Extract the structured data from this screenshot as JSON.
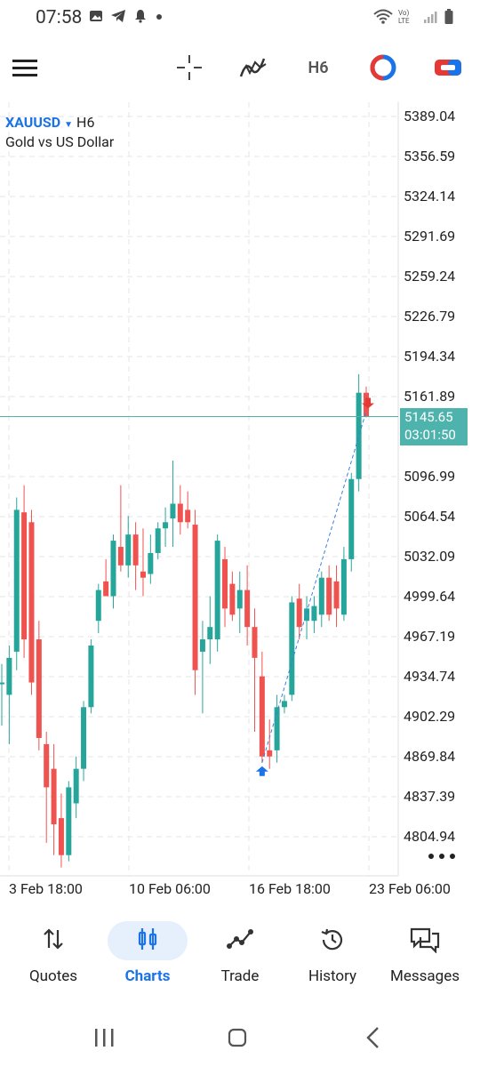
{
  "status": {
    "time": "07:58",
    "network": "Vo) LTE"
  },
  "toolbar": {
    "timeframe": "H6"
  },
  "chart": {
    "symbol": "XAUUSD",
    "timeframe": "H6",
    "description": "Gold vs US Dollar",
    "current_price": "5145.65",
    "countdown": "03:01:50",
    "price_labels": [
      "5389.04",
      "5356.59",
      "5324.14",
      "5291.69",
      "5259.24",
      "5226.79",
      "5194.34",
      "5161.89",
      "5096.99",
      "5064.54",
      "5032.09",
      "4999.64",
      "4967.19",
      "4934.74",
      "4902.29",
      "4869.84",
      "4837.39",
      "4804.94"
    ],
    "date_labels": [
      "3 Feb 18:00",
      "10 Feb 06:00",
      "16 Feb 18:00",
      "23 Feb 06:00"
    ]
  },
  "chart_data": {
    "type": "candlestick",
    "ylim": [
      4785,
      5400
    ],
    "candles": [
      {
        "o": 4930,
        "h": 4945,
        "l": 4895,
        "c": 4930,
        "up": true
      },
      {
        "o": 4920,
        "h": 4960,
        "l": 4880,
        "c": 4950,
        "up": true
      },
      {
        "o": 4955,
        "h": 5080,
        "l": 4940,
        "c": 5070,
        "up": true
      },
      {
        "o": 5068,
        "h": 5090,
        "l": 4950,
        "c": 4965,
        "up": false
      },
      {
        "o": 5060,
        "h": 5070,
        "l": 4920,
        "c": 4930,
        "up": false
      },
      {
        "o": 4965,
        "h": 4980,
        "l": 4875,
        "c": 4885,
        "up": false
      },
      {
        "o": 4880,
        "h": 4890,
        "l": 4800,
        "c": 4845,
        "up": false
      },
      {
        "o": 4860,
        "h": 4880,
        "l": 4790,
        "c": 4815,
        "up": false
      },
      {
        "o": 4820,
        "h": 4840,
        "l": 4780,
        "c": 4790,
        "up": false
      },
      {
        "o": 4790,
        "h": 4850,
        "l": 4785,
        "c": 4845,
        "up": true
      },
      {
        "o": 4832,
        "h": 4870,
        "l": 4820,
        "c": 4860,
        "up": true
      },
      {
        "o": 4860,
        "h": 4915,
        "l": 4850,
        "c": 4910,
        "up": true
      },
      {
        "o": 4910,
        "h": 4965,
        "l": 4905,
        "c": 4960,
        "up": true
      },
      {
        "o": 4980,
        "h": 5010,
        "l": 4970,
        "c": 5005,
        "up": true
      },
      {
        "o": 5012,
        "h": 5030,
        "l": 5000,
        "c": 5000,
        "up": false
      },
      {
        "o": 5000,
        "h": 5050,
        "l": 4990,
        "c": 5045,
        "up": true
      },
      {
        "o": 5040,
        "h": 5090,
        "l": 5020,
        "c": 5025,
        "up": false
      },
      {
        "o": 5025,
        "h": 5065,
        "l": 5015,
        "c": 5050,
        "up": true
      },
      {
        "o": 5050,
        "h": 5060,
        "l": 5005,
        "c": 5025,
        "up": false
      },
      {
        "o": 5020,
        "h": 5055,
        "l": 5000,
        "c": 5015,
        "up": false
      },
      {
        "o": 5018,
        "h": 5050,
        "l": 5010,
        "c": 5035,
        "up": true
      },
      {
        "o": 5035,
        "h": 5060,
        "l": 5030,
        "c": 5055,
        "up": true
      },
      {
        "o": 5055,
        "h": 5072,
        "l": 5040,
        "c": 5060,
        "up": true
      },
      {
        "o": 5063,
        "h": 5110,
        "l": 5040,
        "c": 5075,
        "up": true
      },
      {
        "o": 5075,
        "h": 5090,
        "l": 5050,
        "c": 5060,
        "up": false
      },
      {
        "o": 5070,
        "h": 5085,
        "l": 5055,
        "c": 5060,
        "up": false
      },
      {
        "o": 5058,
        "h": 5070,
        "l": 4920,
        "c": 4940,
        "up": false
      },
      {
        "o": 4955,
        "h": 4980,
        "l": 4905,
        "c": 4965,
        "up": true
      },
      {
        "o": 4975,
        "h": 5000,
        "l": 4945,
        "c": 4965,
        "up": true
      },
      {
        "o": 4965,
        "h": 5050,
        "l": 4955,
        "c": 5045,
        "up": true
      },
      {
        "o": 5030,
        "h": 5040,
        "l": 4975,
        "c": 4990,
        "up": false
      },
      {
        "o": 5010,
        "h": 5020,
        "l": 4980,
        "c": 4985,
        "up": false
      },
      {
        "o": 4990,
        "h": 5020,
        "l": 4970,
        "c": 5005,
        "up": true
      },
      {
        "o": 5005,
        "h": 5025,
        "l": 4960,
        "c": 4975,
        "up": false
      },
      {
        "o": 4975,
        "h": 4990,
        "l": 4890,
        "c": 4950,
        "up": false
      },
      {
        "o": 4935,
        "h": 4955,
        "l": 4865,
        "c": 4870,
        "up": false
      },
      {
        "o": 4875,
        "h": 4900,
        "l": 4860,
        "c": 4870,
        "up": false
      },
      {
        "o": 4875,
        "h": 4920,
        "l": 4865,
        "c": 4910,
        "up": true
      },
      {
        "o": 4910,
        "h": 4920,
        "l": 4905,
        "c": 4915,
        "up": true
      },
      {
        "o": 4920,
        "h": 5000,
        "l": 4915,
        "c": 4995,
        "up": true
      },
      {
        "o": 4998,
        "h": 5010,
        "l": 4965,
        "c": 4975,
        "up": false
      },
      {
        "o": 4980,
        "h": 5000,
        "l": 4965,
        "c": 4990,
        "up": true
      },
      {
        "o": 4980,
        "h": 5000,
        "l": 4970,
        "c": 4992,
        "up": true
      },
      {
        "o": 4985,
        "h": 5020,
        "l": 4975,
        "c": 5015,
        "up": true
      },
      {
        "o": 5015,
        "h": 5025,
        "l": 4980,
        "c": 4985,
        "up": false
      },
      {
        "o": 5012,
        "h": 5025,
        "l": 4975,
        "c": 4990,
        "up": false
      },
      {
        "o": 4985,
        "h": 5040,
        "l": 4980,
        "c": 5030,
        "up": true
      },
      {
        "o": 5030,
        "h": 5100,
        "l": 5020,
        "c": 5095,
        "up": true
      },
      {
        "o": 5095,
        "h": 5180,
        "l": 5085,
        "c": 5165,
        "up": true
      },
      {
        "o": 5165,
        "h": 5170,
        "l": 5145,
        "c": 5146,
        "up": false
      }
    ]
  },
  "nav": {
    "items": [
      {
        "label": "Quotes"
      },
      {
        "label": "Charts"
      },
      {
        "label": "Trade"
      },
      {
        "label": "History"
      },
      {
        "label": "Messages"
      }
    ]
  }
}
